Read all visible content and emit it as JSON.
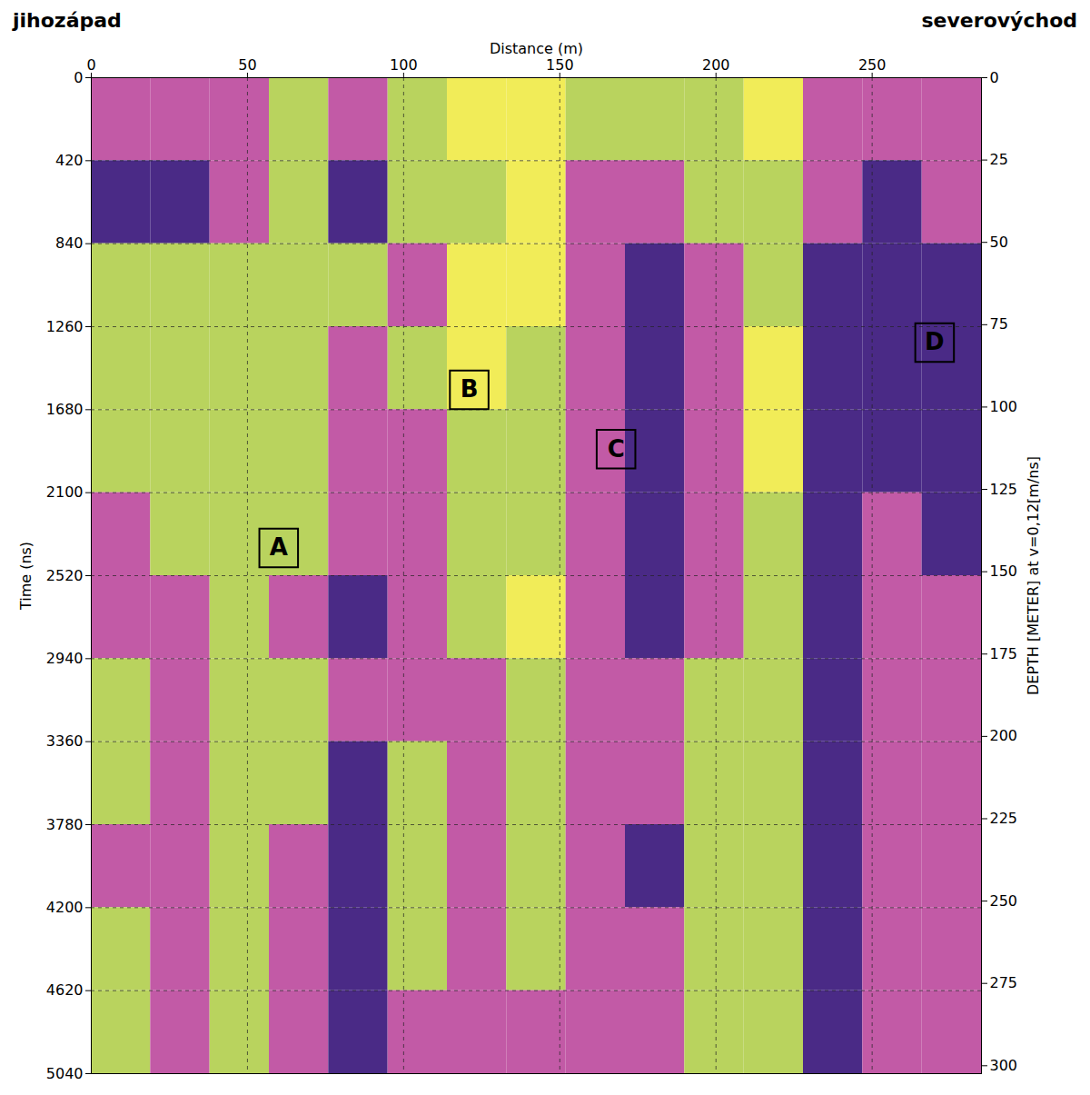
{
  "chart_data": {
    "type": "heatmap",
    "corner_labels": [
      "jihozápad",
      "severovýchod"
    ],
    "x_label": "Distance (m)",
    "y_label": "Time (ns)",
    "y2_label": "DEPTH [METER] at v=0,12[m/ns]",
    "xlim": [
      0,
      285
    ],
    "xticks": [
      0,
      50,
      100,
      150,
      200,
      250
    ],
    "ylim": [
      0,
      5040
    ],
    "yticks": [
      0,
      420,
      840,
      1260,
      1680,
      2100,
      2520,
      2940,
      3360,
      3780,
      4200,
      4620,
      5040
    ],
    "y2lim": [
      0,
      302.4
    ],
    "y2ticks": [
      0,
      25,
      50,
      75,
      100,
      125,
      150,
      175,
      200,
      225,
      250,
      275,
      300
    ],
    "grid": true,
    "cells": {
      "x_edges": [
        0,
        19,
        38,
        57,
        76,
        95,
        114,
        133,
        152,
        171,
        190,
        209,
        228,
        247,
        266,
        285
      ],
      "y_edges": [
        0,
        420,
        840,
        1260,
        1680,
        2100,
        2520,
        2940,
        3360,
        3780,
        4200,
        4620,
        5040
      ],
      "levels": [
        0,
        1,
        2,
        3
      ],
      "colors": [
        "#f1ec58",
        "#b9d35e",
        "#c25aa6",
        "#4a2a86"
      ],
      "values": [
        [
          2,
          2,
          2,
          1,
          2,
          1,
          0,
          0,
          1,
          1,
          1,
          0,
          2,
          2,
          2
        ],
        [
          3,
          3,
          2,
          1,
          3,
          1,
          1,
          0,
          2,
          2,
          1,
          1,
          2,
          3,
          2
        ],
        [
          1,
          1,
          1,
          1,
          1,
          2,
          0,
          0,
          2,
          3,
          2,
          1,
          3,
          3,
          3
        ],
        [
          1,
          1,
          1,
          1,
          2,
          1,
          0,
          1,
          2,
          3,
          2,
          0,
          3,
          3,
          3
        ],
        [
          1,
          1,
          1,
          1,
          2,
          2,
          1,
          1,
          2,
          3,
          2,
          0,
          3,
          3,
          3
        ],
        [
          2,
          1,
          1,
          1,
          2,
          2,
          1,
          1,
          2,
          3,
          2,
          1,
          3,
          2,
          3
        ],
        [
          2,
          2,
          1,
          2,
          3,
          2,
          1,
          0,
          2,
          3,
          2,
          1,
          3,
          2,
          2
        ],
        [
          1,
          2,
          1,
          1,
          2,
          2,
          2,
          1,
          2,
          2,
          1,
          1,
          3,
          2,
          2
        ],
        [
          1,
          2,
          1,
          1,
          3,
          1,
          2,
          1,
          2,
          2,
          1,
          1,
          3,
          2,
          2
        ],
        [
          2,
          2,
          1,
          2,
          3,
          1,
          2,
          1,
          2,
          3,
          1,
          1,
          3,
          2,
          2
        ],
        [
          1,
          2,
          1,
          2,
          3,
          1,
          2,
          1,
          2,
          2,
          1,
          1,
          3,
          2,
          2
        ],
        [
          1,
          2,
          1,
          2,
          3,
          2,
          2,
          2,
          2,
          2,
          1,
          1,
          3,
          2,
          2
        ]
      ]
    },
    "annotations": [
      {
        "text": "A",
        "x": 60,
        "y": 2380
      },
      {
        "text": "B",
        "x": 121,
        "y": 1580
      },
      {
        "text": "C",
        "x": 168,
        "y": 1880
      },
      {
        "text": "D",
        "x": 270,
        "y": 1340
      }
    ]
  }
}
